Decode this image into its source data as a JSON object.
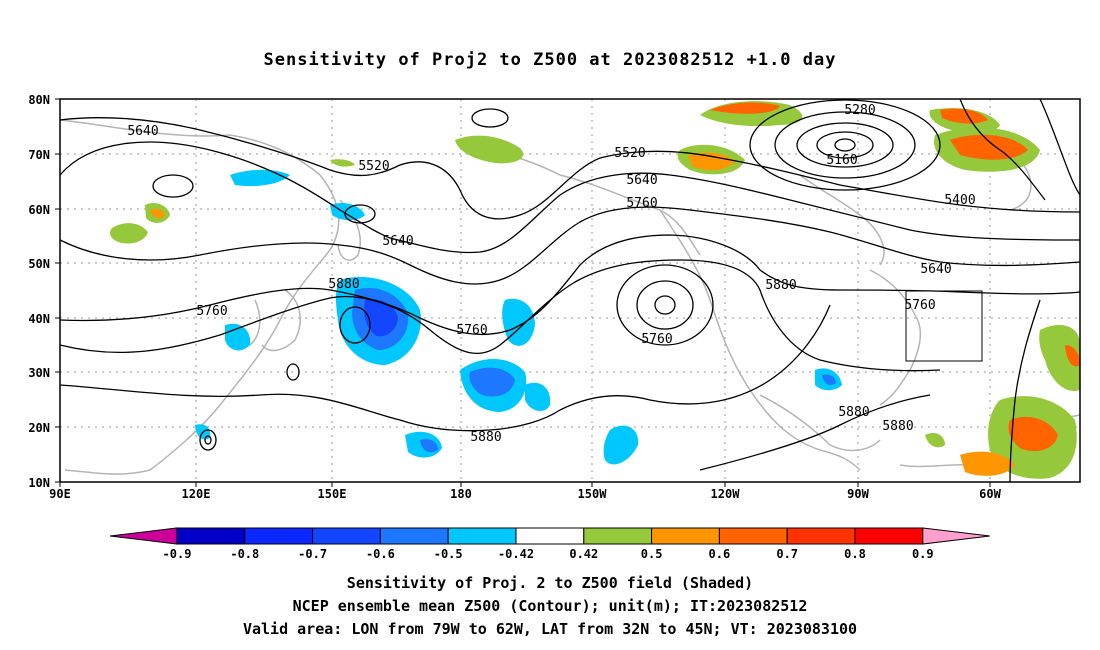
{
  "title": "Sensitivity of Proj2 to Z500 at 2023082512 +1.0 day",
  "lat_labels": [
    "80N",
    "70N",
    "60N",
    "50N",
    "40N",
    "30N",
    "20N",
    "10N"
  ],
  "lon_labels": [
    "90E",
    "120E",
    "150E",
    "180",
    "150W",
    "120W",
    "90W",
    "60W"
  ],
  "colorbar": {
    "labels": [
      "-0.9",
      "-0.8",
      "-0.7",
      "-0.6",
      "-0.5",
      "-0.42",
      "0.42",
      "0.5",
      "0.6",
      "0.7",
      "0.8",
      "0.9"
    ],
    "colors": [
      "#cc0099",
      "#0000c8",
      "#0a28ff",
      "#1446ff",
      "#1e78ff",
      "#00c8ff",
      "#ffffff",
      "#96c83c",
      "#ff9600",
      "#ff6400",
      "#ff3200",
      "#ff0000",
      "#ff9fd0"
    ]
  },
  "contour_labels": [
    "5640",
    "5520",
    "5640",
    "5880",
    "5760",
    "5760",
    "5520",
    "5640",
    "5760",
    "5760",
    "5880",
    "5280",
    "5160",
    "5400",
    "5640",
    "5760",
    "5880",
    "5880",
    "5880"
  ],
  "captions": [
    "Sensitivity of Proj. 2 to Z500 field (Shaded)",
    "NCEP ensemble mean Z500 (Contour); unit(m); IT:2023082512",
    "Valid area: LON from 79W to 62W, LAT from 32N to 45N; VT: 2023083100"
  ]
}
